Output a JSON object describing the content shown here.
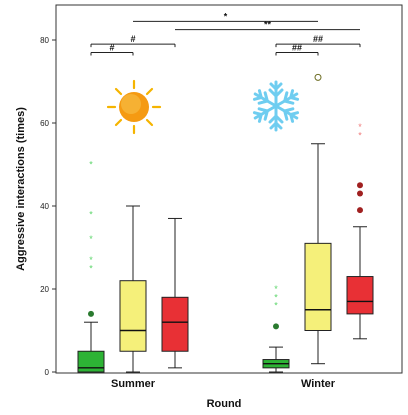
{
  "chart_data": {
    "type": "box",
    "xlabel": "Round",
    "ylabel": "Aggressive interactions (times)",
    "ylim": [
      0,
      86
    ],
    "yticks": [
      0,
      20,
      40,
      60,
      80
    ],
    "categories": [
      "Summer",
      "Winter"
    ],
    "groups": [
      {
        "category": "Summer",
        "boxes": [
          {
            "color": "#2db335",
            "min": 0,
            "q1": 0,
            "median": 1,
            "q3": 5,
            "max": 12,
            "circle_outliers": [
              14
            ],
            "star_outliers": [
              25,
              27,
              32,
              38,
              50
            ]
          },
          {
            "color": "#f5f07a",
            "min": 0,
            "q1": 5,
            "median": 10,
            "q3": 22,
            "max": 40,
            "circle_outliers": [],
            "star_outliers": []
          },
          {
            "color": "#e83035",
            "min": 1,
            "q1": 5,
            "median": 12,
            "q3": 18,
            "max": 37,
            "circle_outliers": [],
            "star_outliers": []
          }
        ]
      },
      {
        "category": "Winter",
        "boxes": [
          {
            "color": "#2db335",
            "min": 0,
            "q1": 1,
            "median": 2,
            "q3": 3,
            "max": 6,
            "circle_outliers": [
              11
            ],
            "star_outliers": [
              16,
              18,
              20
            ]
          },
          {
            "color": "#f5f07a",
            "min": 2,
            "q1": 10,
            "median": 15,
            "q3": 31,
            "max": 55,
            "circle_outliers": [
              71
            ],
            "star_outliers": []
          },
          {
            "color": "#e83035",
            "min": 8,
            "q1": 14,
            "median": 17,
            "q3": 23,
            "max": 35,
            "circle_outliers": [
              39,
              43,
              45
            ],
            "star_outliers": [
              57,
              59
            ]
          }
        ]
      }
    ],
    "significance": [
      {
        "label": "*",
        "y": 84.5
      },
      {
        "label": "**",
        "y": 82.5
      },
      {
        "label": "#",
        "y": 79
      },
      {
        "label": "#",
        "y": 77
      },
      {
        "label": "##",
        "y": 79
      },
      {
        "label": "##",
        "y": 77
      }
    ],
    "icons": [
      "sun-icon",
      "snowflake-icon"
    ],
    "colors": {
      "green": "#2db335",
      "yellow": "#f5f07a",
      "red": "#e83035",
      "star_green": "#5cd66a",
      "star_red": "#f07b7b",
      "circle_red": "#a02020"
    }
  }
}
